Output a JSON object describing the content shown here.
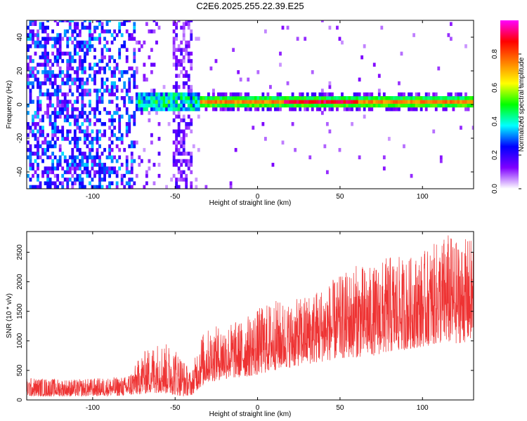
{
  "title": "C2E6.2025.255.22.39.E25",
  "chart_data": [
    {
      "type": "heatmap",
      "xlabel": "Height of straight line (km)",
      "ylabel": "Frequency (Hz)",
      "xlim": [
        -140,
        131
      ],
      "ylim": [
        -50,
        50
      ],
      "xticks": [
        -100,
        -50,
        0,
        50,
        100
      ],
      "xtick_labels": [
        "-100",
        "-50",
        "0",
        "50",
        "100"
      ],
      "yticks": [
        -40,
        -20,
        0,
        20,
        40
      ],
      "ytick_labels": [
        "-40",
        "-20",
        "0",
        "20",
        "40"
      ],
      "colorbar": {
        "label": "Normalized spectral amplitude",
        "range": [
          0,
          1
        ],
        "ticks": [
          0.0,
          0.2,
          0.4,
          0.6,
          0.8
        ],
        "tick_labels": [
          "0.0",
          "0.2",
          "0.4",
          "0.6",
          "0.8"
        ],
        "colormap": [
          "#ffffff",
          "#7f00ff",
          "#0000ff",
          "#00ffff",
          "#00ff00",
          "#ffff00",
          "#ff8000",
          "#ff0000",
          "#ff00ff"
        ]
      },
      "regions": [
        {
          "x_range": [
            -140,
            -75
          ],
          "description": "broadband noise, amplitude ~0.1-0.3"
        },
        {
          "x_range": [
            -75,
            -35
          ],
          "description": "band near 0 Hz, amplitude ~0.3-0.5"
        },
        {
          "x_range": [
            -35,
            131
          ],
          "description": "narrow band near 0 Hz, amplitude up to ~0.9"
        }
      ],
      "band_center_hz": 0.5
    },
    {
      "type": "line",
      "xlabel": "Height of straight line (km)",
      "ylabel": "SNR (10 * v/v)",
      "xlim": [
        -140,
        131
      ],
      "ylim": [
        0,
        2850
      ],
      "xticks": [
        -100,
        -50,
        0,
        50,
        100
      ],
      "xtick_labels": [
        "-100",
        "-50",
        "0",
        "50",
        "100"
      ],
      "yticks": [
        0,
        500,
        1000,
        1500,
        2000,
        2500
      ],
      "ytick_labels": [
        "0",
        "500",
        "1000",
        "1500",
        "2000",
        "2500"
      ],
      "series_color": "#ee3333",
      "series": [
        {
          "envelope_x": [
            -140,
            -110,
            -80,
            -75,
            -70,
            -60,
            -50,
            -45,
            -40,
            -35,
            -30,
            -20,
            -10,
            0,
            10,
            20,
            30,
            40,
            50,
            60,
            70,
            80,
            90,
            100,
            110,
            115,
            120,
            131
          ],
          "envelope_low": [
            60,
            60,
            70,
            80,
            100,
            120,
            80,
            60,
            80,
            200,
            300,
            350,
            380,
            420,
            500,
            550,
            600,
            650,
            700,
            720,
            750,
            800,
            850,
            900,
            950,
            950,
            950,
            1000
          ],
          "envelope_high": [
            380,
            350,
            400,
            550,
            800,
            1000,
            900,
            700,
            450,
            1100,
            1200,
            1300,
            1350,
            1550,
            1700,
            1650,
            1800,
            1950,
            2100,
            2300,
            2250,
            2450,
            2400,
            2500,
            2700,
            2850,
            2700,
            2750
          ]
        }
      ]
    }
  ]
}
